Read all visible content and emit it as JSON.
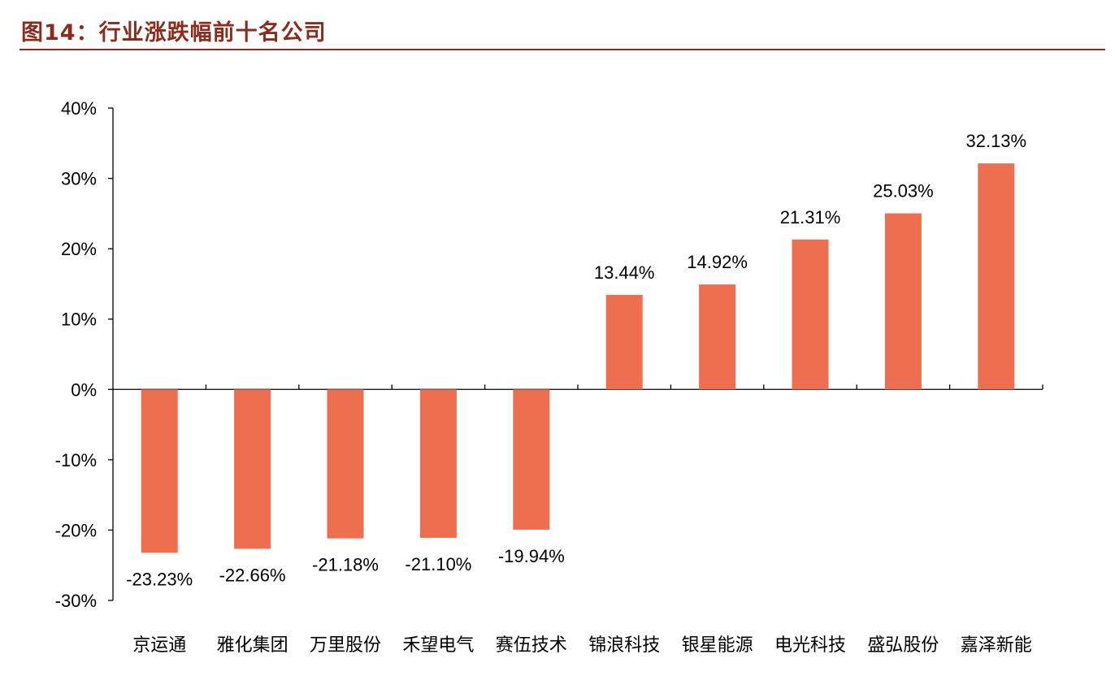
{
  "header": {
    "title": "图14：行业涨跌幅前十名公司"
  },
  "colors": {
    "bar": "#ee6f4f",
    "title": "#8b2c1e",
    "axis": "#000000"
  },
  "chart_data": {
    "type": "bar",
    "title": "",
    "xlabel": "",
    "ylabel": "",
    "ylim": [
      -30,
      40
    ],
    "y_ticks": [
      "40%",
      "30%",
      "20%",
      "10%",
      "0%",
      "-10%",
      "-20%",
      "-30%"
    ],
    "y_tick_values": [
      40,
      30,
      20,
      10,
      0,
      -10,
      -20,
      -30
    ],
    "categories": [
      "京运通",
      "雅化集团",
      "万里股份",
      "禾望电气",
      "赛伍技术",
      "锦浪科技",
      "银星能源",
      "电光科技",
      "盛弘股份",
      "嘉泽新能"
    ],
    "values": [
      -23.23,
      -22.66,
      -21.18,
      -21.1,
      -19.94,
      13.44,
      14.92,
      21.31,
      25.03,
      32.13
    ],
    "data_labels": [
      "-23.23%",
      "-22.66%",
      "-21.18%",
      "-21.10%",
      "-19.94%",
      "13.44%",
      "14.92%",
      "21.31%",
      "25.03%",
      "32.13%"
    ],
    "grid": false,
    "legend": "none"
  }
}
